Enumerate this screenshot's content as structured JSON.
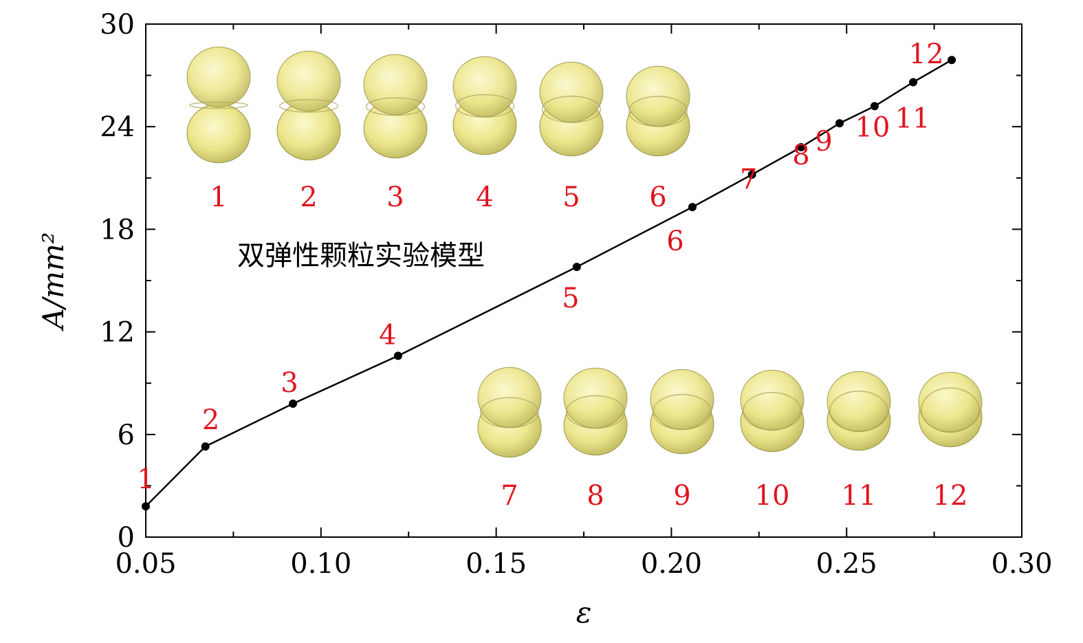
{
  "chart_data": {
    "type": "line",
    "xlabel": "ε",
    "ylabel": "A/mm²",
    "xlim": [
      0.05,
      0.3
    ],
    "ylim": [
      0,
      30
    ],
    "x_ticks": [
      "0.05",
      "0.10",
      "0.15",
      "0.20",
      "0.25",
      "0.30"
    ],
    "y_ticks": [
      "0",
      "6",
      "12",
      "18",
      "24",
      "30"
    ],
    "grid": false,
    "series": [
      {
        "x": [
          0.05,
          0.067,
          0.092,
          0.122,
          0.173,
          0.206,
          0.223,
          0.237,
          0.248,
          0.258,
          0.269,
          0.28
        ],
        "y": [
          1.8,
          5.3,
          7.8,
          10.6,
          15.8,
          19.3,
          21.2,
          22.8,
          24.2,
          25.2,
          26.6,
          27.9
        ],
        "point_labels": [
          "1",
          "2",
          "3",
          "4",
          "5",
          "6",
          "7",
          "8",
          "9",
          "10",
          "11",
          "12"
        ],
        "color": "#000000"
      }
    ],
    "annotations": {
      "caption": "双弹性颗粒实验模型",
      "top_image_labels": [
        "1",
        "2",
        "3",
        "4",
        "5",
        "6"
      ],
      "bottom_image_labels": [
        "7",
        "8",
        "9",
        "10",
        "11",
        "12"
      ]
    },
    "label_color": "#e0141e",
    "particle_color": "#f0ec98"
  }
}
